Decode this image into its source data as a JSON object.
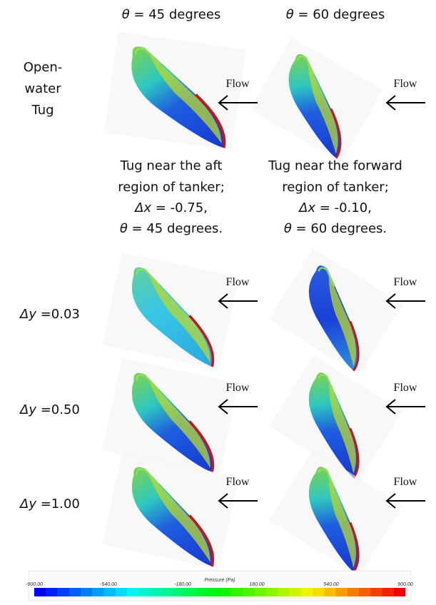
{
  "header": {
    "columns": [
      {
        "symbol": "θ",
        "text": " = 45 degrees"
      },
      {
        "symbol": "θ",
        "text": " = 60 degrees"
      }
    ]
  },
  "open_water": {
    "label": [
      "Open-",
      "water",
      "Tug"
    ],
    "flow_labels": [
      "Flow",
      "Flow"
    ]
  },
  "captions": [
    {
      "lines": [
        "Tug near the aft",
        "region of tanker;"
      ],
      "delta": {
        "symbol": "Δx",
        "text": " = -0.75,"
      },
      "angle": {
        "symbol": "θ",
        "text": " = 45 degrees."
      }
    },
    {
      "lines": [
        "Tug near the forward",
        "region of tanker;"
      ],
      "delta": {
        "symbol": "Δx",
        "text": " = -0.10,"
      },
      "angle": {
        "symbol": "θ",
        "text": " = 60 degrees."
      }
    }
  ],
  "offset_rows": [
    {
      "symbol": "Δy",
      "text": " =0.03",
      "flow_labels": [
        "Flow",
        "Flow"
      ]
    },
    {
      "symbol": "Δy",
      "text": " =0.50",
      "flow_labels": [
        "Flow",
        "Flow"
      ]
    },
    {
      "symbol": "Δy",
      "text": " =1.00",
      "flow_labels": [
        "Flow",
        "Flow"
      ]
    }
  ],
  "colorbar": {
    "title": "Pressure (Pa)",
    "ticks": [
      "-900.00",
      "-540.00",
      "-180.00",
      "180.00",
      "540.00",
      "900.00"
    ]
  }
}
